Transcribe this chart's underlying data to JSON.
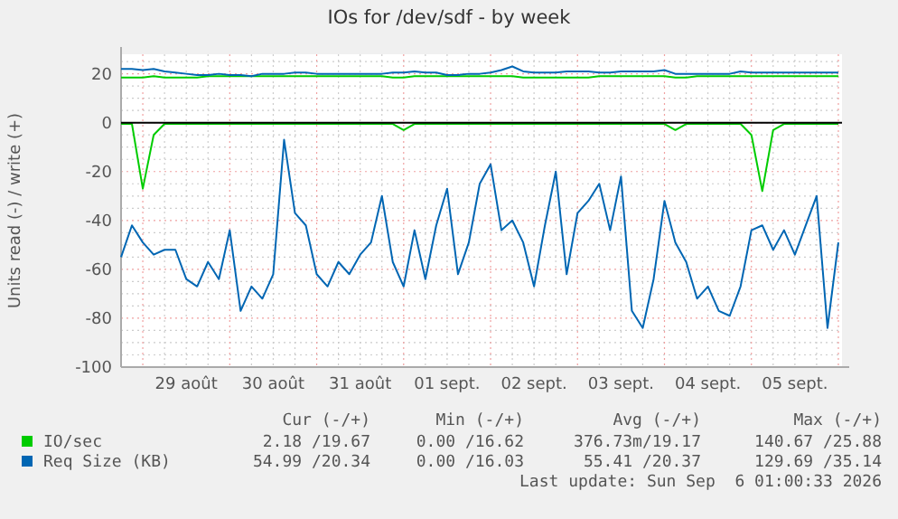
{
  "chart_data": {
    "type": "line",
    "title": "IOs for /dev/sdf - by week",
    "ylabel": "Units read (-) / write (+)",
    "x": [
      "2026-08-28T18:00",
      "2026-08-28T21:00",
      "2026-08-29T00:00",
      "2026-08-29T03:00",
      "2026-08-29T06:00",
      "2026-08-29T09:00",
      "2026-08-29T12:00",
      "2026-08-29T15:00",
      "2026-08-29T18:00",
      "2026-08-29T21:00",
      "2026-08-30T00:00",
      "2026-08-30T03:00",
      "2026-08-30T06:00",
      "2026-08-30T09:00",
      "2026-08-30T12:00",
      "2026-08-30T15:00",
      "2026-08-30T18:00",
      "2026-08-30T21:00",
      "2026-08-31T00:00",
      "2026-08-31T03:00",
      "2026-08-31T06:00",
      "2026-08-31T09:00",
      "2026-08-31T12:00",
      "2026-08-31T15:00",
      "2026-08-31T18:00",
      "2026-08-31T21:00",
      "2026-09-01T00:00",
      "2026-09-01T03:00",
      "2026-09-01T06:00",
      "2026-09-01T09:00",
      "2026-09-01T12:00",
      "2026-09-01T15:00",
      "2026-09-01T18:00",
      "2026-09-01T21:00",
      "2026-09-02T00:00",
      "2026-09-02T03:00",
      "2026-09-02T06:00",
      "2026-09-02T09:00",
      "2026-09-02T12:00",
      "2026-09-02T15:00",
      "2026-09-02T18:00",
      "2026-09-02T21:00",
      "2026-09-03T00:00",
      "2026-09-03T03:00",
      "2026-09-03T06:00",
      "2026-09-03T09:00",
      "2026-09-03T12:00",
      "2026-09-03T15:00",
      "2026-09-03T18:00",
      "2026-09-03T21:00",
      "2026-09-04T00:00",
      "2026-09-04T03:00",
      "2026-09-04T06:00",
      "2026-09-04T09:00",
      "2026-09-04T12:00",
      "2026-09-04T15:00",
      "2026-09-04T18:00",
      "2026-09-04T21:00",
      "2026-09-05T00:00",
      "2026-09-05T03:00",
      "2026-09-05T06:00",
      "2026-09-05T09:00",
      "2026-09-05T12:00",
      "2026-09-05T15:00",
      "2026-09-05T18:00",
      "2026-09-05T21:00",
      "2026-09-06T00:00"
    ],
    "series": [
      {
        "name": "IO/sec",
        "color": "#00cc00",
        "values": [
          -0.5,
          -0.5,
          -27,
          -5,
          -0.5,
          -0.5,
          -0.5,
          -0.5,
          -0.5,
          -0.5,
          -0.5,
          -0.5,
          -0.5,
          -0.5,
          -0.5,
          -0.5,
          -0.5,
          -0.5,
          -0.5,
          -0.5,
          -0.5,
          -0.5,
          -0.5,
          -0.5,
          -0.5,
          -0.5,
          -3,
          -0.5,
          -0.5,
          -0.5,
          -0.5,
          -0.5,
          -0.5,
          -0.5,
          -0.5,
          -0.5,
          -0.5,
          -0.5,
          -0.5,
          -0.5,
          -0.5,
          -0.5,
          -0.5,
          -0.5,
          -0.5,
          -0.5,
          -0.5,
          -0.5,
          -0.5,
          -0.5,
          -0.5,
          -3,
          -0.5,
          -0.5,
          -0.5,
          -0.5,
          -0.5,
          -0.5,
          -5,
          -28,
          -3,
          -0.5,
          -0.5,
          -0.5,
          -0.5,
          -0.5,
          -0.5
        ]
      },
      {
        "color": "#00cc00",
        "values": [
          18.5,
          18.5,
          18.5,
          19,
          18.5,
          18.5,
          18.5,
          18.5,
          19,
          19,
          19,
          19,
          19,
          19,
          19,
          19,
          19,
          19,
          19,
          19,
          19,
          19,
          19,
          19,
          19,
          18.5,
          18.5,
          19,
          19,
          19,
          19,
          19,
          19,
          19,
          19,
          19,
          19,
          18.5,
          18.5,
          18.5,
          18.5,
          18.5,
          18.5,
          18.5,
          19,
          19,
          19,
          19,
          19,
          19,
          19,
          18.5,
          18.5,
          19,
          19,
          19,
          19,
          19,
          19,
          19,
          19,
          19,
          19,
          19,
          19,
          19,
          19
        ]
      },
      {
        "name": "Req Size (KB)",
        "color": "#0066b3",
        "values": [
          -55,
          -42,
          -49,
          -54,
          -52,
          -52,
          -64,
          -67,
          -57,
          -64,
          -44,
          -77,
          -67,
          -72,
          -62,
          -7,
          -37,
          -42,
          -62,
          -67,
          -57,
          -62,
          -54,
          -49,
          -30,
          -57,
          -67,
          -44,
          -64,
          -42,
          -27,
          -62,
          -49,
          -25,
          -17,
          -44,
          -40,
          -49,
          -67,
          -42,
          -20,
          -62,
          -37,
          -32,
          -25,
          -44,
          -22,
          -77,
          -84,
          -64,
          -32,
          -49,
          -57,
          -72,
          -67,
          -77,
          -79,
          -67,
          -44,
          -42,
          -52,
          -44,
          -54,
          -42,
          -30,
          -84,
          -49
        ]
      },
      {
        "color": "#0066b3",
        "values": [
          22,
          22,
          21.5,
          22,
          21,
          20.5,
          20,
          19.5,
          19.5,
          20,
          19.5,
          19.5,
          19,
          20,
          20,
          20,
          20.5,
          20.5,
          20,
          20,
          20,
          20,
          20,
          20,
          20,
          20.5,
          20.5,
          21,
          20.5,
          20.5,
          19.5,
          19.5,
          20,
          20,
          20.5,
          21.5,
          23,
          21,
          20.5,
          20.5,
          20.5,
          21,
          21,
          21,
          20.5,
          20.5,
          21,
          21,
          21,
          21,
          21.5,
          20,
          20,
          20,
          20,
          20,
          20,
          21,
          20.5,
          20.5,
          20.5,
          20.5,
          20.5,
          20.5,
          20.5,
          20.5,
          20.5
        ]
      }
    ],
    "xlim": [
      "2026-08-28T18:00",
      "2026-09-06T01:00"
    ],
    "xticks": [
      {
        "value": "2026-08-28T18:00",
        "label": null
      },
      {
        "value": "2026-08-29T00:00",
        "label": null
      },
      {
        "value": "2026-08-29T06:00",
        "label": null
      },
      {
        "value": "2026-08-29T12:00",
        "label": "29 août"
      },
      {
        "value": "2026-08-29T18:00",
        "label": null
      },
      {
        "value": "2026-08-30T00:00",
        "label": null
      },
      {
        "value": "2026-08-30T06:00",
        "label": null
      },
      {
        "value": "2026-08-30T12:00",
        "label": "30 août"
      },
      {
        "value": "2026-08-30T18:00",
        "label": null
      },
      {
        "value": "2026-08-31T00:00",
        "label": null
      },
      {
        "value": "2026-08-31T06:00",
        "label": null
      },
      {
        "value": "2026-08-31T12:00",
        "label": "31 août"
      },
      {
        "value": "2026-08-31T18:00",
        "label": null
      },
      {
        "value": "2026-09-01T00:00",
        "label": null
      },
      {
        "value": "2026-09-01T06:00",
        "label": null
      },
      {
        "value": "2026-09-01T12:00",
        "label": "01 sept."
      },
      {
        "value": "2026-09-01T18:00",
        "label": null
      },
      {
        "value": "2026-09-02T00:00",
        "label": null
      },
      {
        "value": "2026-09-02T06:00",
        "label": null
      },
      {
        "value": "2026-09-02T12:00",
        "label": "02 sept."
      },
      {
        "value": "2026-09-02T18:00",
        "label": null
      },
      {
        "value": "2026-09-03T00:00",
        "label": null
      },
      {
        "value": "2026-09-03T06:00",
        "label": null
      },
      {
        "value": "2026-09-03T12:00",
        "label": "03 sept."
      },
      {
        "value": "2026-09-03T18:00",
        "label": null
      },
      {
        "value": "2026-09-04T00:00",
        "label": null
      },
      {
        "value": "2026-09-04T06:00",
        "label": null
      },
      {
        "value": "2026-09-04T12:00",
        "label": "04 sept."
      },
      {
        "value": "2026-09-04T18:00",
        "label": null
      },
      {
        "value": "2026-09-05T00:00",
        "label": null
      },
      {
        "value": "2026-09-05T06:00",
        "label": null
      },
      {
        "value": "2026-09-05T12:00",
        "label": "05 sept."
      },
      {
        "value": "2026-09-05T18:00",
        "label": null
      },
      {
        "value": "2026-09-06T00:00",
        "label": null
      }
    ],
    "ylim": [
      -100,
      28
    ],
    "yticks": [
      -100,
      {
        "value": -95,
        "label": null
      },
      {
        "value": -90,
        "label": null
      },
      {
        "value": -85,
        "label": null
      },
      -80,
      {
        "value": -75,
        "label": null
      },
      {
        "value": -70,
        "label": null
      },
      {
        "value": -65,
        "label": null
      },
      -60,
      {
        "value": -55,
        "label": null
      },
      {
        "value": -50,
        "label": null
      },
      {
        "value": -45,
        "label": null
      },
      -40,
      {
        "value": -35,
        "label": null
      },
      {
        "value": -30,
        "label": null
      },
      {
        "value": -25,
        "label": null
      },
      -20,
      {
        "value": -15,
        "label": null
      },
      {
        "value": -10,
        "label": null
      },
      {
        "value": -5,
        "label": null
      },
      0,
      {
        "value": 5,
        "label": null
      },
      {
        "value": 10,
        "label": null
      },
      {
        "value": 15,
        "label": null
      },
      20,
      {
        "value": 25,
        "label": null
      }
    ],
    "ref_lines": [
      {
        "axis": "y",
        "value": 0,
        "color": "#000000"
      }
    ],
    "grid": true,
    "legend": "bottom",
    "line_style": "solid",
    "marker": "none",
    "annotations": [
      "Cur (-/+)",
      "Min (-/+)",
      "Avg (-/+)",
      "Max (-/+)",
      "2.18 /19.67",
      "0.00 /16.62",
      "376.73m/19.17",
      "140.67 /25.88",
      "54.99 /20.34",
      "0.00 /16.03",
      "55.41 /20.37",
      "129.69 /35.14",
      "Last update: Sun Sep  6 01:00:33 2026"
    ]
  }
}
